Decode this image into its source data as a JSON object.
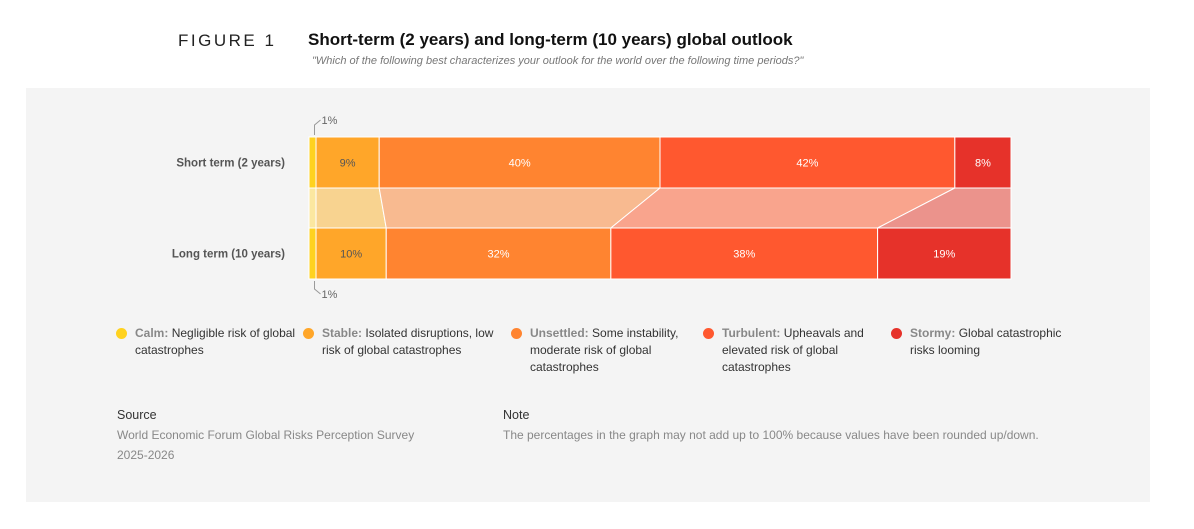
{
  "header": {
    "figure": "FIGURE 1",
    "title": "Short-term (2 years) and long-term (10 years) global outlook",
    "subtitle": "\"Which of the following best characterizes your outlook for the world over the following time periods?\""
  },
  "chart_data": {
    "type": "bar",
    "orientation": "horizontal-stacked-100",
    "categories": [
      "Short term (2 years)",
      "Long term (10 years)"
    ],
    "series": [
      {
        "name": "Calm",
        "color": "#FFD21F",
        "band": "#FBE7A0",
        "values": [
          1,
          1
        ],
        "labels": [
          "1%",
          "1%"
        ]
      },
      {
        "name": "Stable",
        "color": "#FFA629",
        "band": "#F8D390",
        "values": [
          9,
          10
        ],
        "labels": [
          "9%",
          "10%"
        ]
      },
      {
        "name": "Unsettled",
        "color": "#FF8430",
        "band": "#F8BA90",
        "values": [
          40,
          32
        ],
        "labels": [
          "40%",
          "32%"
        ]
      },
      {
        "name": "Turbulent",
        "color": "#FF582F",
        "band": "#F9A48D",
        "values": [
          42,
          38
        ],
        "labels": [
          "42%",
          "38%"
        ]
      },
      {
        "name": "Stormy",
        "color": "#E6322A",
        "band": "#EB938C",
        "values": [
          8,
          19
        ],
        "labels": [
          "8%",
          "19%"
        ]
      }
    ],
    "xlim": [
      0,
      100
    ]
  },
  "legend": [
    {
      "label": "Calm:",
      "desc": "Negligible risk of global catastrophes",
      "color": "#FFD21F"
    },
    {
      "label": "Stable:",
      "desc": "Isolated disruptions, low risk of global catastrophes",
      "color": "#FFA629"
    },
    {
      "label": "Unsettled:",
      "desc": "Some instability, moderate risk of global catastrophes",
      "color": "#FF8430"
    },
    {
      "label": "Turbulent:",
      "desc": "Upheavals and elevated risk of global catastrophes",
      "color": "#FF582F"
    },
    {
      "label": "Stormy:",
      "desc": "Global catastrophic risks looming",
      "color": "#E6322A"
    }
  ],
  "source": {
    "heading": "Source",
    "text1": "World Economic Forum Global Risks Perception Survey",
    "text2": "2025-2026"
  },
  "note": {
    "heading": "Note",
    "text": "The percentages in the graph may not add up to 100% because values have been rounded up/down."
  }
}
